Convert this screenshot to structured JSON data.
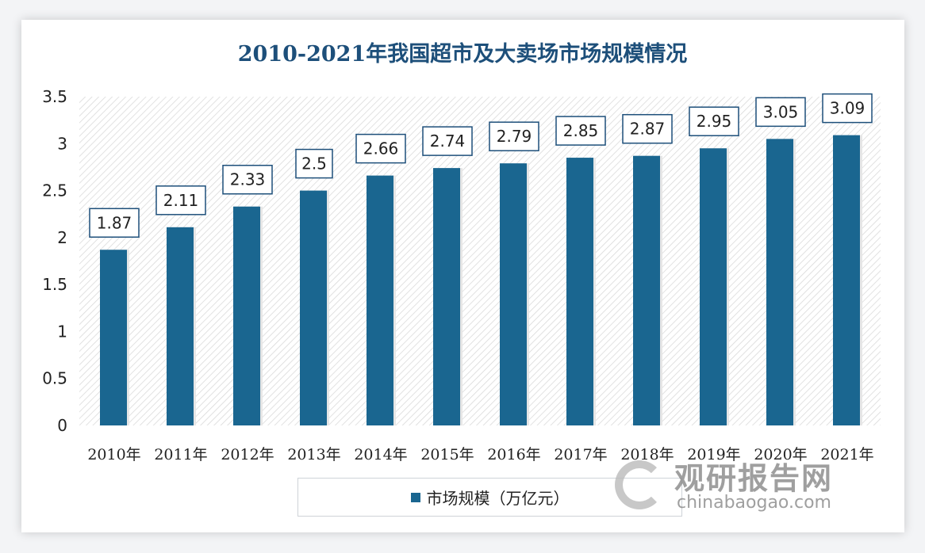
{
  "chart_data": {
    "type": "bar",
    "title": "2010-2021年我国超市及大卖场市场规模情况",
    "categories": [
      "2010年",
      "2011年",
      "2012年",
      "2013年",
      "2014年",
      "2015年",
      "2016年",
      "2017年",
      "2018年",
      "2019年",
      "2020年",
      "2021年"
    ],
    "series": [
      {
        "name": "市场规模（万亿元）",
        "values": [
          1.87,
          2.11,
          2.33,
          2.5,
          2.66,
          2.74,
          2.79,
          2.85,
          2.87,
          2.95,
          3.05,
          3.09
        ],
        "color": "#1a6690"
      }
    ],
    "data_labels": [
      "1.87",
      "2.11",
      "2.33",
      "2.5",
      "2.66",
      "2.74",
      "2.79",
      "2.85",
      "2.87",
      "2.95",
      "3.05",
      "3.09"
    ],
    "ylim": [
      0,
      3.5
    ],
    "yticks": [
      "0",
      "0.5",
      "1",
      "1.5",
      "2",
      "2.5",
      "3",
      "3.5"
    ],
    "grid": false,
    "legend": "bottom"
  },
  "watermark": {
    "cn": "观研报告网",
    "en": "chinabaogao.com"
  }
}
